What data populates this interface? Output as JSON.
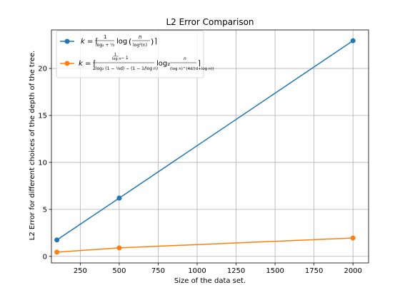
{
  "chart_data": {
    "type": "line",
    "title": "L2 Error Comparison",
    "xlabel": "Size of the data set.",
    "ylabel": "L2 Error for different choices of the depth of the tree.",
    "xlim": [
      65,
      2100
    ],
    "ylim": [
      -0.7,
      24.1
    ],
    "xticks": [
      250,
      500,
      750,
      1000,
      1250,
      1500,
      1750,
      2000
    ],
    "yticks": [
      0,
      5,
      10,
      15,
      20
    ],
    "grid": true,
    "legend_position": "top-left",
    "series": [
      {
        "name": "k = ⌈ 1/(log₂ + 1/3) log( n / log²(n) ) ⌉",
        "color": "#1f77b4",
        "x": [
          100,
          500,
          2000
        ],
        "y": [
          1.75,
          6.2,
          22.95
        ]
      },
      {
        "name": "k = ⌈ (1/log n − 1) / (2log₂(1 − 1/(8d)) − (1 − 1/log n)) · log₂ ( n / (log n)^(4d/(d+log n)) ) ⌉",
        "color": "#ff7f0e",
        "x": [
          100,
          500,
          2000
        ],
        "y": [
          0.45,
          0.9,
          1.95
        ]
      }
    ]
  }
}
